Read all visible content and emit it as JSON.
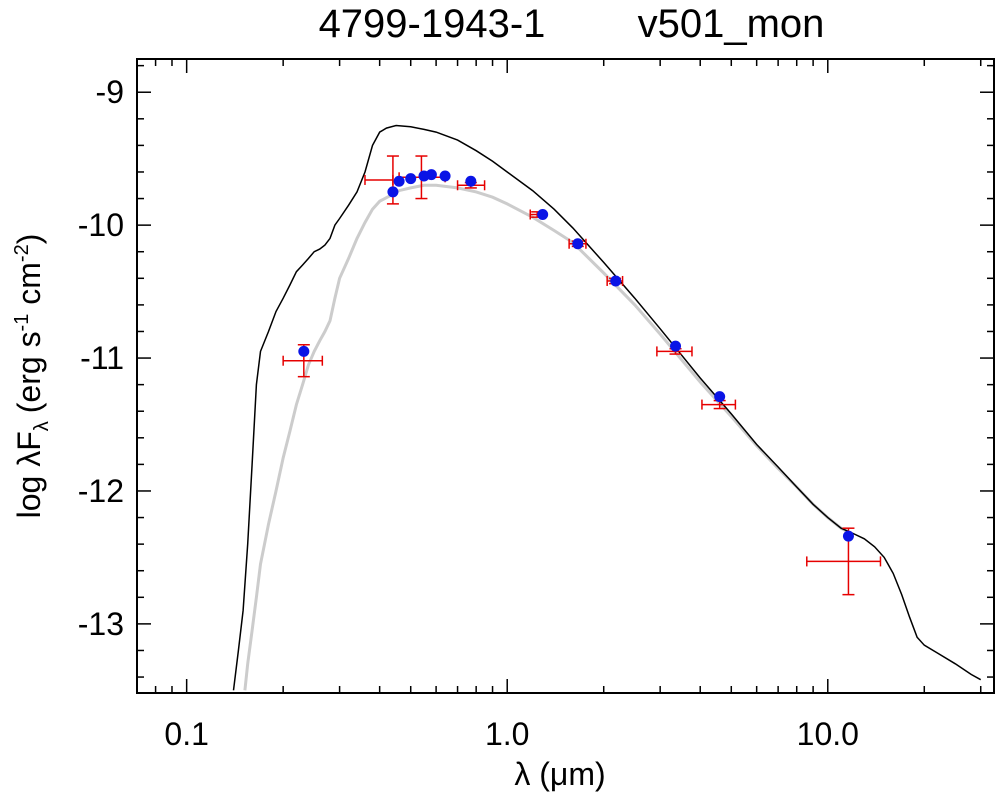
{
  "chart_data": {
    "type": "scatter",
    "title_left": "4799-1943-1",
    "title_right": "v501_mon",
    "xlabel": "λ (μm)",
    "ylabel": "log λF",
    "ylabel_sub": "λ",
    "ylabel_unit": "(erg s",
    "ylabel_exp1": "-1",
    "ylabel_mid": " cm",
    "ylabel_exp2": "-2",
    "ylabel_close": ")",
    "x_scale": "log",
    "xlim": [
      0.07,
      33
    ],
    "ylim": [
      -13.52,
      -8.75
    ],
    "x_tick_labels": [
      {
        "value": 0.1,
        "label": "0.1"
      },
      {
        "value": 1.0,
        "label": "1.0"
      },
      {
        "value": 10.0,
        "label": "10.0"
      }
    ],
    "y_tick_labels": [
      {
        "value": -9,
        "label": "-9"
      },
      {
        "value": -10,
        "label": "-10"
      },
      {
        "value": -11,
        "label": "-11"
      },
      {
        "value": -12,
        "label": "-12"
      },
      {
        "value": -13,
        "label": "-13"
      }
    ],
    "model_points": [
      {
        "x": 0.232,
        "y": -10.95
      },
      {
        "x": 0.44,
        "y": -9.75
      },
      {
        "x": 0.46,
        "y": -9.67
      },
      {
        "x": 0.5,
        "y": -9.65
      },
      {
        "x": 0.55,
        "y": -9.63
      },
      {
        "x": 0.58,
        "y": -9.62
      },
      {
        "x": 0.64,
        "y": -9.63
      },
      {
        "x": 0.77,
        "y": -9.67
      },
      {
        "x": 1.29,
        "y": -9.92
      },
      {
        "x": 1.66,
        "y": -10.14
      },
      {
        "x": 2.18,
        "y": -10.42
      },
      {
        "x": 3.35,
        "y": -10.91
      },
      {
        "x": 4.6,
        "y": -11.29
      },
      {
        "x": 11.6,
        "y": -12.34
      }
    ],
    "observed_points": [
      {
        "x": 0.232,
        "y": -11.02,
        "xerr_lo": 0.032,
        "xerr_hi": 0.033,
        "yerr": 0.12
      },
      {
        "x": 0.44,
        "y": -9.66,
        "xerr_lo": 0.08,
        "xerr_hi": 0.0,
        "yerr": 0.18
      },
      {
        "x": 0.54,
        "y": -9.64,
        "xerr_lo": 0.08,
        "xerr_hi": 0.1,
        "yerr": 0.16
      },
      {
        "x": 0.77,
        "y": -9.7,
        "xerr_lo": 0.07,
        "xerr_hi": 0.08,
        "yerr": 0.02
      },
      {
        "x": 1.24,
        "y": -9.92,
        "xerr_lo": 0.06,
        "xerr_hi": 0.06,
        "yerr": 0.02
      },
      {
        "x": 1.66,
        "y": -10.14,
        "xerr_lo": 0.1,
        "xerr_hi": 0.1,
        "yerr": 0.02
      },
      {
        "x": 2.17,
        "y": -10.42,
        "xerr_lo": 0.12,
        "xerr_hi": 0.12,
        "yerr": 0.02
      },
      {
        "x": 3.35,
        "y": -10.95,
        "xerr_lo": 0.42,
        "xerr_hi": 0.42,
        "yerr": 0.02
      },
      {
        "x": 4.6,
        "y": -11.35,
        "xerr_lo": 0.55,
        "xerr_hi": 0.55,
        "yerr": 0.03
      },
      {
        "x": 11.6,
        "y": -12.53,
        "xerr_lo": 3.0,
        "xerr_hi": 3.0,
        "yerr": 0.25
      }
    ],
    "model_curve": [
      [
        0.14,
        -13.5
      ],
      [
        0.145,
        -13.2
      ],
      [
        0.15,
        -12.9
      ],
      [
        0.155,
        -12.4
      ],
      [
        0.16,
        -11.8
      ],
      [
        0.165,
        -11.2
      ],
      [
        0.17,
        -10.95
      ],
      [
        0.18,
        -10.8
      ],
      [
        0.19,
        -10.65
      ],
      [
        0.2,
        -10.55
      ],
      [
        0.21,
        -10.45
      ],
      [
        0.22,
        -10.35
      ],
      [
        0.23,
        -10.3
      ],
      [
        0.24,
        -10.25
      ],
      [
        0.25,
        -10.2
      ],
      [
        0.26,
        -10.18
      ],
      [
        0.27,
        -10.15
      ],
      [
        0.28,
        -10.1
      ],
      [
        0.29,
        -10.0
      ],
      [
        0.3,
        -9.95
      ],
      [
        0.32,
        -9.85
      ],
      [
        0.34,
        -9.75
      ],
      [
        0.36,
        -9.6
      ],
      [
        0.38,
        -9.4
      ],
      [
        0.4,
        -9.3
      ],
      [
        0.42,
        -9.27
      ],
      [
        0.45,
        -9.25
      ],
      [
        0.5,
        -9.26
      ],
      [
        0.55,
        -9.28
      ],
      [
        0.6,
        -9.3
      ],
      [
        0.7,
        -9.36
      ],
      [
        0.8,
        -9.44
      ],
      [
        0.9,
        -9.52
      ],
      [
        1.0,
        -9.6
      ],
      [
        1.2,
        -9.74
      ],
      [
        1.4,
        -9.88
      ],
      [
        1.6,
        -10.02
      ],
      [
        2.0,
        -10.28
      ],
      [
        2.5,
        -10.55
      ],
      [
        3.0,
        -10.78
      ],
      [
        4.0,
        -11.15
      ],
      [
        5.0,
        -11.42
      ],
      [
        6.0,
        -11.65
      ],
      [
        7.0,
        -11.82
      ],
      [
        8.0,
        -11.97
      ],
      [
        9.0,
        -12.1
      ],
      [
        10.0,
        -12.2
      ],
      [
        11.0,
        -12.28
      ],
      [
        12.0,
        -12.32
      ],
      [
        13.0,
        -12.36
      ],
      [
        14.0,
        -12.42
      ],
      [
        15.0,
        -12.5
      ],
      [
        16.0,
        -12.62
      ],
      [
        17.0,
        -12.78
      ],
      [
        18.0,
        -12.95
      ],
      [
        19.0,
        -13.1
      ],
      [
        20.0,
        -13.16
      ],
      [
        22.0,
        -13.22
      ],
      [
        25.0,
        -13.3
      ],
      [
        28.0,
        -13.38
      ],
      [
        30.0,
        -13.42
      ]
    ],
    "reddened_curve": [
      [
        0.152,
        -13.5
      ],
      [
        0.155,
        -13.3
      ],
      [
        0.16,
        -13.05
      ],
      [
        0.165,
        -12.8
      ],
      [
        0.17,
        -12.55
      ],
      [
        0.18,
        -12.25
      ],
      [
        0.19,
        -12.0
      ],
      [
        0.2,
        -11.75
      ],
      [
        0.21,
        -11.55
      ],
      [
        0.22,
        -11.35
      ],
      [
        0.23,
        -11.2
      ],
      [
        0.24,
        -11.05
      ],
      [
        0.25,
        -10.95
      ],
      [
        0.26,
        -10.87
      ],
      [
        0.27,
        -10.8
      ],
      [
        0.28,
        -10.72
      ],
      [
        0.29,
        -10.55
      ],
      [
        0.3,
        -10.4
      ],
      [
        0.32,
        -10.25
      ],
      [
        0.34,
        -10.1
      ],
      [
        0.36,
        -9.98
      ],
      [
        0.38,
        -9.88
      ],
      [
        0.4,
        -9.82
      ],
      [
        0.43,
        -9.78
      ],
      [
        0.46,
        -9.74
      ],
      [
        0.5,
        -9.72
      ],
      [
        0.55,
        -9.7
      ],
      [
        0.6,
        -9.7
      ],
      [
        0.7,
        -9.72
      ],
      [
        0.8,
        -9.75
      ],
      [
        0.9,
        -9.79
      ],
      [
        1.0,
        -9.84
      ],
      [
        1.2,
        -9.94
      ],
      [
        1.4,
        -10.04
      ],
      [
        1.6,
        -10.13
      ],
      [
        2.0,
        -10.36
      ],
      [
        2.5,
        -10.6
      ],
      [
        3.0,
        -10.82
      ],
      [
        4.0,
        -11.18
      ],
      [
        5.0,
        -11.44
      ],
      [
        6.0,
        -11.66
      ],
      [
        7.0,
        -11.83
      ],
      [
        8.0,
        -11.97
      ],
      [
        9.0,
        -12.1
      ],
      [
        10.0,
        -12.2
      ],
      [
        11.0,
        -12.28
      ],
      [
        12.0,
        -12.33
      ]
    ],
    "colors": {
      "model_line": "#000000",
      "reddened_line": "#cccccc",
      "model_points": "#0a14e6",
      "observed": "#e60000",
      "axes": "#000000"
    }
  }
}
